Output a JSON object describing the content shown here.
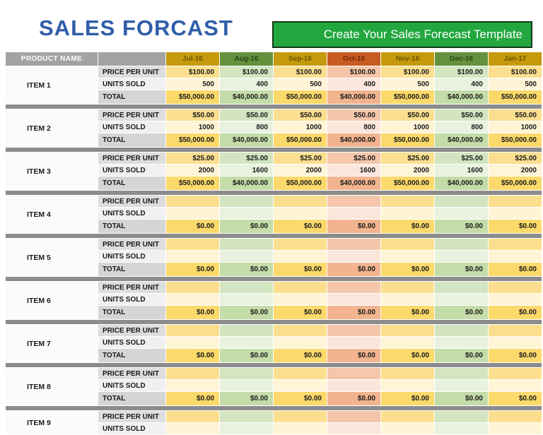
{
  "title": "SALES FORCAST",
  "cta_button": {
    "label": "Create Your Sales Forecast Template"
  },
  "table": {
    "product_header": "PRODUCT NAME",
    "row_labels": {
      "price": "PRICE PER UNIT",
      "units": "UNITS SOLD",
      "total": "TOTAL"
    },
    "months": [
      {
        "label": "Jul-16",
        "theme": "gold"
      },
      {
        "label": "Aug-16",
        "theme": "green"
      },
      {
        "label": "Sep-16",
        "theme": "gold"
      },
      {
        "label": "Oct-16",
        "theme": "salmon"
      },
      {
        "label": "Nov-16",
        "theme": "gold"
      },
      {
        "label": "Dec-16",
        "theme": "green"
      },
      {
        "label": "Jan-17",
        "theme": "gold"
      }
    ],
    "items": [
      {
        "name": "ITEM 1",
        "price": [
          "$100.00",
          "$100.00",
          "$100.00",
          "$100.00",
          "$100.00",
          "$100.00",
          "$100.00"
        ],
        "units": [
          "500",
          "400",
          "500",
          "400",
          "500",
          "400",
          "500"
        ],
        "totals": [
          "$50,000.00",
          "$40,000.00",
          "$50,000.00",
          "$40,000.00",
          "$50,000.00",
          "$40,000.00",
          "$50,000.00"
        ]
      },
      {
        "name": "ITEM 2",
        "price": [
          "$50.00",
          "$50.00",
          "$50.00",
          "$50.00",
          "$50.00",
          "$50.00",
          "$50.00"
        ],
        "units": [
          "1000",
          "800",
          "1000",
          "800",
          "1000",
          "800",
          "1000"
        ],
        "totals": [
          "$50,000.00",
          "$40,000.00",
          "$50,000.00",
          "$40,000.00",
          "$50,000.00",
          "$40,000.00",
          "$50,000.00"
        ]
      },
      {
        "name": "ITEM 3",
        "price": [
          "$25.00",
          "$25.00",
          "$25.00",
          "$25.00",
          "$25.00",
          "$25.00",
          "$25.00"
        ],
        "units": [
          "2000",
          "1600",
          "2000",
          "1600",
          "2000",
          "1600",
          "2000"
        ],
        "totals": [
          "$50,000.00",
          "$40,000.00",
          "$50,000.00",
          "$40,000.00",
          "$50,000.00",
          "$40,000.00",
          "$50,000.00"
        ]
      },
      {
        "name": "ITEM 4",
        "price": [
          "",
          "",
          "",
          "",
          "",
          "",
          ""
        ],
        "units": [
          "",
          "",
          "",
          "",
          "",
          "",
          ""
        ],
        "totals": [
          "$0.00",
          "$0.00",
          "$0.00",
          "$0.00",
          "$0.00",
          "$0.00",
          "$0.00"
        ]
      },
      {
        "name": "ITEM 5",
        "price": [
          "",
          "",
          "",
          "",
          "",
          "",
          ""
        ],
        "units": [
          "",
          "",
          "",
          "",
          "",
          "",
          ""
        ],
        "totals": [
          "$0.00",
          "$0.00",
          "$0.00",
          "$0.00",
          "$0.00",
          "$0.00",
          "$0.00"
        ]
      },
      {
        "name": "ITEM 6",
        "price": [
          "",
          "",
          "",
          "",
          "",
          "",
          ""
        ],
        "units": [
          "",
          "",
          "",
          "",
          "",
          "",
          ""
        ],
        "totals": [
          "$0.00",
          "$0.00",
          "$0.00",
          "$0.00",
          "$0.00",
          "$0.00",
          "$0.00"
        ]
      },
      {
        "name": "ITEM 7",
        "price": [
          "",
          "",
          "",
          "",
          "",
          "",
          ""
        ],
        "units": [
          "",
          "",
          "",
          "",
          "",
          "",
          ""
        ],
        "totals": [
          "$0.00",
          "$0.00",
          "$0.00",
          "$0.00",
          "$0.00",
          "$0.00",
          "$0.00"
        ]
      },
      {
        "name": "ITEM 8",
        "price": [
          "",
          "",
          "",
          "",
          "",
          "",
          ""
        ],
        "units": [
          "",
          "",
          "",
          "",
          "",
          "",
          ""
        ],
        "totals": [
          "$0.00",
          "$0.00",
          "$0.00",
          "$0.00",
          "$0.00",
          "$0.00",
          "$0.00"
        ]
      },
      {
        "name": "ITEM 9",
        "price": [
          "",
          "",
          "",
          "",
          "",
          "",
          ""
        ],
        "units": [
          "",
          "",
          "",
          "",
          "",
          "",
          ""
        ],
        "totals": null,
        "partial": true
      }
    ]
  },
  "colors": {
    "title_blue": "#2F5DA8",
    "button_green": "#21A73E",
    "button_border": "#14381C",
    "header_gray": "#A3A3A3",
    "divider_gray": "#8C8C8C",
    "label_price_bg": "#DDDDDD",
    "label_units_bg": "#F0F0F0",
    "label_total_bg": "#D5D5D5",
    "item_bg": "#FBFBFB",
    "cell_text": "#1A1A1A",
    "gold": {
      "header": "#C59A0C",
      "header_text": "#6E5600",
      "price": "#FBDF8F",
      "units": "#FFF4D6",
      "total": "#FBD96B"
    },
    "green": {
      "header": "#63913C",
      "header_text": "#2C4418",
      "price": "#D2E5C0",
      "units": "#E8F2DE",
      "total": "#C3DCA8"
    },
    "salmon": {
      "header": "#C75B21",
      "header_text": "#72250A",
      "price": "#F5C6AA",
      "units": "#FBE6DB",
      "total": "#F1B48E"
    }
  }
}
